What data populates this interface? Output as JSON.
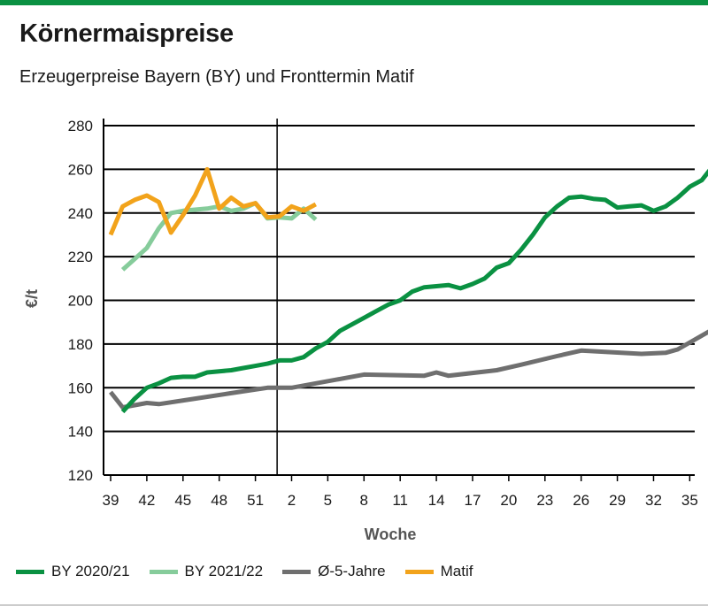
{
  "header": {
    "title": "Körnermaispreise",
    "subtitle": "Erzeugerpreise Bayern (BY) und Fronttermin Matif"
  },
  "colors": {
    "brand_bar": "#0a9142"
  },
  "chart_data": {
    "type": "line",
    "title": "Körnermaispreise",
    "subtitle": "Erzeugerpreise Bayern (BY) und Fronttermin Matif",
    "xlabel": "Woche",
    "ylabel": "€/t",
    "ylim": [
      120,
      280
    ],
    "yticks": [
      120,
      140,
      160,
      180,
      200,
      220,
      240,
      260,
      280
    ],
    "x_tick_labels": [
      "39",
      "42",
      "45",
      "48",
      "51",
      "2",
      "5",
      "8",
      "11",
      "14",
      "17",
      "20",
      "23",
      "26",
      "29",
      "32",
      "35"
    ],
    "x_note": "x values are week sequence numbers: week 39 = 1 … week 53 = 15, week 1 = 16 … week 35 = 50",
    "year_divider_x": 14.8,
    "grid": "horizontal",
    "legend_position": "bottom",
    "series": [
      {
        "name": "BY 2020/21",
        "color": "#0a9142",
        "points": [
          [
            2,
            149
          ],
          [
            3,
            155
          ],
          [
            4,
            160
          ],
          [
            5,
            162
          ],
          [
            6,
            164.5
          ],
          [
            7,
            165
          ],
          [
            8,
            165
          ],
          [
            9,
            167
          ],
          [
            10,
            167.5
          ],
          [
            11,
            168
          ],
          [
            12,
            169
          ],
          [
            13,
            170
          ],
          [
            14,
            171
          ],
          [
            15,
            172.5
          ],
          [
            16,
            172.5
          ],
          [
            17,
            174
          ],
          [
            18,
            178
          ],
          [
            19,
            181
          ],
          [
            20,
            186
          ],
          [
            21,
            189
          ],
          [
            22,
            192
          ],
          [
            23,
            195
          ],
          [
            24,
            198
          ],
          [
            25,
            200
          ],
          [
            26,
            204
          ],
          [
            27,
            206
          ],
          [
            28,
            206.5
          ],
          [
            29,
            207
          ],
          [
            30,
            205.5
          ],
          [
            31,
            207.5
          ],
          [
            32,
            210
          ],
          [
            33,
            215
          ],
          [
            34,
            217
          ],
          [
            35,
            223
          ],
          [
            36,
            230
          ],
          [
            37,
            238
          ],
          [
            38,
            243
          ],
          [
            39,
            247
          ],
          [
            40,
            247.5
          ],
          [
            41,
            246.5
          ],
          [
            42,
            246
          ],
          [
            43,
            242.5
          ],
          [
            44,
            243
          ],
          [
            45,
            243.5
          ],
          [
            46,
            241
          ],
          [
            47,
            243
          ],
          [
            48,
            247
          ],
          [
            49,
            252
          ],
          [
            50,
            255
          ],
          [
            51,
            262
          ]
        ]
      },
      {
        "name": "BY 2021/22",
        "color": "#86cc9b",
        "points": [
          [
            2,
            214
          ],
          [
            3,
            219
          ],
          [
            4,
            224
          ],
          [
            5,
            233
          ],
          [
            6,
            240
          ],
          [
            7,
            241
          ],
          [
            8,
            241.5
          ],
          [
            9,
            242
          ],
          [
            10,
            243
          ],
          [
            11,
            241
          ],
          [
            12,
            242
          ],
          [
            13,
            244.5
          ],
          [
            14,
            237.5
          ],
          [
            15,
            238
          ],
          [
            16,
            237.5
          ],
          [
            17,
            242
          ],
          [
            18,
            237
          ]
        ]
      },
      {
        "name": "Ø-5-Jahre",
        "color": "#6f6f6f",
        "points": [
          [
            1,
            158
          ],
          [
            2,
            151
          ],
          [
            3,
            152
          ],
          [
            4,
            153
          ],
          [
            5,
            152.5
          ],
          [
            8,
            155
          ],
          [
            11,
            157.5
          ],
          [
            14,
            160
          ],
          [
            16,
            160
          ],
          [
            20,
            164
          ],
          [
            22,
            166
          ],
          [
            27,
            165.5
          ],
          [
            28,
            167
          ],
          [
            29,
            165.5
          ],
          [
            33,
            168
          ],
          [
            35,
            170.5
          ],
          [
            38,
            174.5
          ],
          [
            40,
            177
          ],
          [
            45,
            175.5
          ],
          [
            47,
            176
          ],
          [
            48,
            177.5
          ],
          [
            51,
            187
          ]
        ]
      },
      {
        "name": "Matif",
        "color": "#f2a31b",
        "points": [
          [
            1,
            230
          ],
          [
            2,
            243
          ],
          [
            3,
            246
          ],
          [
            4,
            248
          ],
          [
            5,
            245
          ],
          [
            6,
            231
          ],
          [
            7,
            239
          ],
          [
            8,
            248
          ],
          [
            9,
            260
          ],
          [
            10,
            242
          ],
          [
            11,
            247
          ],
          [
            12,
            243
          ],
          [
            13,
            244.5
          ],
          [
            14,
            238
          ],
          [
            15,
            238.5
          ],
          [
            16,
            243
          ],
          [
            17,
            241
          ],
          [
            18,
            244
          ]
        ]
      }
    ]
  }
}
